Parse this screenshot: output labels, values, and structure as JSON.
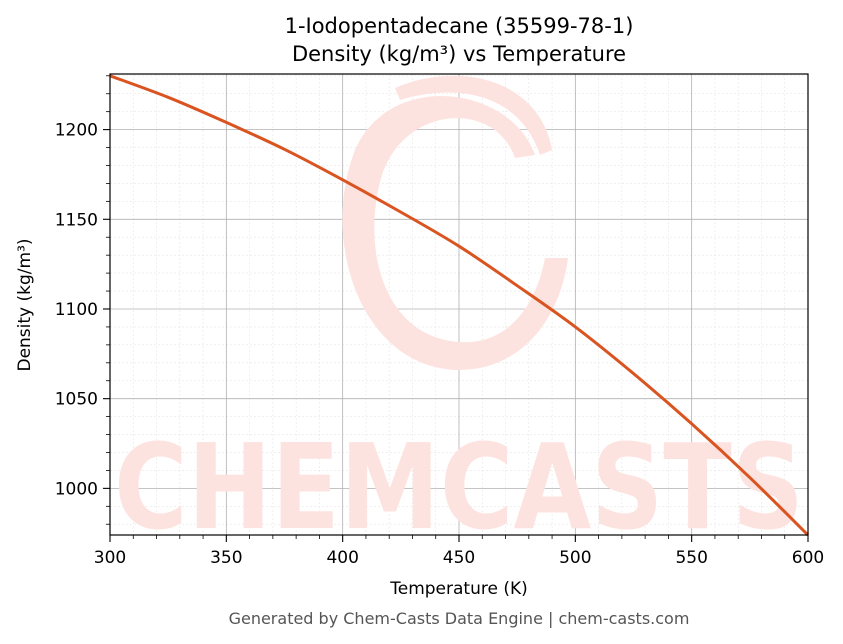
{
  "footer": "Generated by Chem-Casts Data Engine | chem-casts.com",
  "watermark": "CHEMCASTS",
  "colors": {
    "line": "#d95420",
    "watermark": "#fde3df",
    "grid_major": "#b0b0b0",
    "grid_minor": "#e6e6e6"
  },
  "chart_data": {
    "type": "line",
    "title": "1-Iodopentadecane (35599-78-1)",
    "subtitle": "Density (kg/m³) vs Temperature",
    "xlabel": "Temperature (K)",
    "ylabel": "Density (kg/m³)",
    "xlim": [
      300,
      600
    ],
    "ylim": [
      974,
      1231
    ],
    "xticks": [
      300,
      350,
      400,
      450,
      500,
      550,
      600
    ],
    "yticks": [
      1000,
      1050,
      1100,
      1150,
      1200
    ],
    "grid": true,
    "series": [
      {
        "x": [
          300,
          325,
          350,
          375,
          400,
          425,
          450,
          475,
          500,
          525,
          550,
          575,
          600
        ],
        "y": [
          1230,
          1218,
          1204,
          1189,
          1172,
          1154,
          1135,
          1113,
          1090,
          1064,
          1036,
          1006,
          974
        ]
      }
    ]
  }
}
